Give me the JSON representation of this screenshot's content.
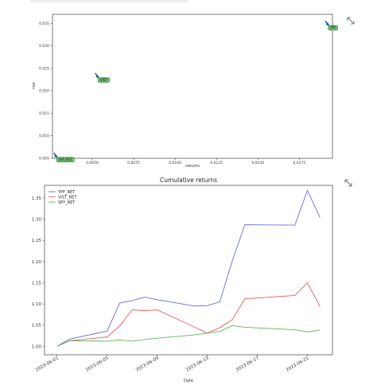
{
  "chart_data": [
    {
      "type": "scatter",
      "title": "",
      "xlabel": "returns",
      "ylabel": "risk",
      "xlim": [
        0.0026,
        0.0195
      ],
      "ylim": [
        0.005,
        0.037
      ],
      "xticks": [
        "0.0050",
        "0.0075",
        "0.0100",
        "0.0125",
        "0.0150",
        "0.0175"
      ],
      "yticks": [
        "0.005",
        "0.010",
        "0.015",
        "0.020",
        "0.025",
        "0.030",
        "0.035"
      ],
      "points": [
        {
          "label": "SPY_RET",
          "x": 0.0028,
          "y": 0.0055
        },
        {
          "label": "VIST",
          "x": 0.0053,
          "y": 0.0232
        },
        {
          "label": "YPF",
          "x": 0.0192,
          "y": 0.0348
        }
      ],
      "colors": {
        "point": "#1f77b4",
        "label_box": "#66bb6a",
        "label_edge": "#2e7d32"
      }
    },
    {
      "type": "line",
      "title": "Cumulative returns",
      "xlabel": "Date",
      "ylabel": "",
      "ylim": [
        0.98,
        1.38
      ],
      "xlim": [
        "2023-05-31",
        "2023-06-23"
      ],
      "xticks": [
        "2023-06-01",
        "2023-06-05",
        "2023-06-09",
        "2023-06-13",
        "2023-06-17",
        "2023-06-21"
      ],
      "yticks": [
        "1.00",
        "1.05",
        "1.10",
        "1.15",
        "1.20",
        "1.25",
        "1.30",
        "1.35"
      ],
      "legend_position": "upper-left",
      "x": [
        "2023-06-01",
        "2023-06-02",
        "2023-06-05",
        "2023-06-06",
        "2023-06-07",
        "2023-06-08",
        "2023-06-09",
        "2023-06-12",
        "2023-06-13",
        "2023-06-14",
        "2023-06-15",
        "2023-06-16",
        "2023-06-20",
        "2023-06-21",
        "2023-06-22"
      ],
      "series": [
        {
          "name": "YPF_RET",
          "color": "#6a6ad8",
          "values": [
            1.0,
            1.017,
            1.036,
            1.102,
            1.108,
            1.116,
            1.11,
            1.095,
            1.096,
            1.105,
            1.202,
            1.287,
            1.286,
            1.368,
            1.304
          ]
        },
        {
          "name": "VIST_RET",
          "color": "#e85c5c",
          "values": [
            1.0,
            1.013,
            1.022,
            1.048,
            1.086,
            1.084,
            1.086,
            1.045,
            1.031,
            1.044,
            1.063,
            1.112,
            1.12,
            1.15,
            1.094
          ]
        },
        {
          "name": "SPY_RET",
          "color": "#5bb55b",
          "values": [
            1.0,
            1.013,
            1.012,
            1.015,
            1.012,
            1.016,
            1.019,
            1.027,
            1.031,
            1.035,
            1.049,
            1.045,
            1.039,
            1.034,
            1.038
          ]
        }
      ]
    }
  ]
}
